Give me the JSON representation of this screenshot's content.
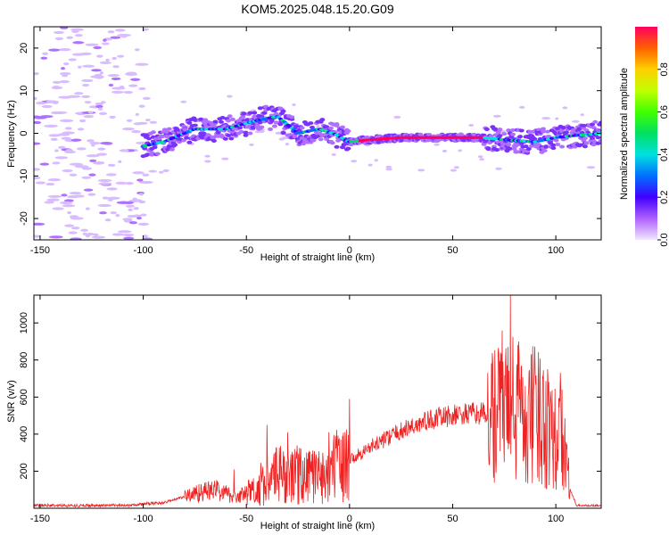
{
  "title": "KOM5.2025.048.15.20.G09",
  "chart_data": [
    {
      "type": "heatmap",
      "xlabel": "Height of straight line (km)",
      "ylabel": "Frequency (Hz)",
      "xlim": [
        -153,
        122
      ],
      "ylim": [
        -25,
        25
      ],
      "xticks": [
        -150,
        -100,
        -50,
        0,
        50,
        100
      ],
      "yticks": [
        -20,
        -10,
        0,
        10,
        20
      ],
      "colorbar": {
        "label": "Normalized spectral amplitude",
        "range": [
          0,
          1
        ],
        "ticks": [
          "0.0",
          "0.2",
          "0.4",
          "0.6",
          "0.8"
        ],
        "colors": [
          "#f0e6ff",
          "#b060ff",
          "#4000ff",
          "#0070ff",
          "#00e0e0",
          "#00e060",
          "#40ff00",
          "#c0ff00",
          "#ffd000",
          "#ff6000",
          "#ff0060"
        ]
      },
      "ridge": [
        {
          "x": -100,
          "y": -3
        },
        {
          "x": -90,
          "y": -2
        },
        {
          "x": -75,
          "y": 1
        },
        {
          "x": -60,
          "y": 1
        },
        {
          "x": -45,
          "y": 3
        },
        {
          "x": -35,
          "y": 4
        },
        {
          "x": -25,
          "y": 0
        },
        {
          "x": -15,
          "y": 1
        },
        {
          "x": -8,
          "y": 0
        },
        {
          "x": 0,
          "y": -2
        },
        {
          "x": 10,
          "y": -1.5
        },
        {
          "x": 25,
          "y": -1
        },
        {
          "x": 50,
          "y": -1
        },
        {
          "x": 65,
          "y": -1
        },
        {
          "x": 75,
          "y": -1.5
        },
        {
          "x": 90,
          "y": -2
        },
        {
          "x": 100,
          "y": -1
        },
        {
          "x": 110,
          "y": -0.5
        },
        {
          "x": 122,
          "y": 0
        }
      ]
    },
    {
      "type": "line",
      "xlabel": "Height of straight line (km)",
      "ylabel": "SNR (v/v)",
      "xlim": [
        -153,
        122
      ],
      "ylim": [
        0,
        1150
      ],
      "xticks": [
        -150,
        -100,
        -50,
        0,
        50,
        100
      ],
      "yticks": [
        200,
        400,
        600,
        800,
        1000
      ],
      "color": "#ee2222",
      "envelope": [
        {
          "x": -153,
          "y": 15
        },
        {
          "x": -110,
          "y": 15
        },
        {
          "x": -90,
          "y": 30
        },
        {
          "x": -75,
          "y": 80
        },
        {
          "x": -65,
          "y": 100
        },
        {
          "x": -55,
          "y": 60
        },
        {
          "x": -45,
          "y": 100
        },
        {
          "x": -35,
          "y": 180
        },
        {
          "x": -25,
          "y": 180
        },
        {
          "x": -15,
          "y": 170
        },
        {
          "x": -5,
          "y": 230
        },
        {
          "x": 0,
          "y": 260
        },
        {
          "x": 10,
          "y": 330
        },
        {
          "x": 20,
          "y": 390
        },
        {
          "x": 30,
          "y": 440
        },
        {
          "x": 40,
          "y": 480
        },
        {
          "x": 50,
          "y": 500
        },
        {
          "x": 60,
          "y": 510
        },
        {
          "x": 67,
          "y": 510
        },
        {
          "x": 75,
          "y": 550
        },
        {
          "x": 85,
          "y": 500
        },
        {
          "x": 95,
          "y": 480
        },
        {
          "x": 103,
          "y": 400
        },
        {
          "x": 107,
          "y": 100
        },
        {
          "x": 110,
          "y": 15
        },
        {
          "x": 122,
          "y": 15
        }
      ],
      "peaks": [
        {
          "x": -72,
          "y": 130
        },
        {
          "x": -56,
          "y": 210
        },
        {
          "x": -40,
          "y": 450
        },
        {
          "x": -30,
          "y": 410
        },
        {
          "x": -20,
          "y": 300
        },
        {
          "x": -10,
          "y": 410
        },
        {
          "x": 0,
          "y": 590
        },
        {
          "x": 72,
          "y": 840
        },
        {
          "x": 78,
          "y": 1150
        },
        {
          "x": 82,
          "y": 900
        },
        {
          "x": 88,
          "y": 820
        },
        {
          "x": 96,
          "y": 750
        },
        {
          "x": 103,
          "y": 640
        }
      ]
    }
  ]
}
